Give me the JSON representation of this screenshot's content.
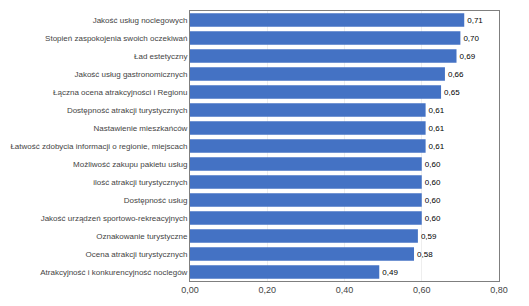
{
  "chart_data": {
    "type": "bar",
    "orientation": "horizontal",
    "categories": [
      "Atrakcyjność i konkurencyjność noclegów",
      "Ocena atrakcji turystycznych",
      "Oznakowanie turystyczne",
      "Jakość urządzeń sportowo-rekreacyjnych",
      "Dostępność usług",
      "ilość atrakcji turystycznych",
      "Możliwość zakupu pakietu usług",
      "Łatwość zdobycia informacji o regionie, miejscach",
      "Nastawienie mieszkańców",
      "Dostępność atrakcji turystycznych",
      "Łączna ocena atrakcyjności i Regionu",
      "Jakość usług gastronomicznych",
      "Ład estetyczny",
      "Stopień zaspokojenia swoich oczekiwań",
      "Jakość usług noclegowych"
    ],
    "values": [
      0.49,
      0.58,
      0.59,
      0.6,
      0.6,
      0.6,
      0.6,
      0.61,
      0.61,
      0.61,
      0.65,
      0.66,
      0.69,
      0.7,
      0.71
    ],
    "value_labels": [
      "0,49",
      "0,58",
      "0,59",
      "0,60",
      "0,60",
      "0,60",
      "0,60",
      "0,61",
      "0,61",
      "0,61",
      "0,65",
      "0,66",
      "0,69",
      "0,70",
      "0,71"
    ],
    "data_labels": true,
    "color": "#4472C4",
    "xlim": [
      0,
      0.8
    ],
    "xticks": [
      {
        "value": 0.0,
        "label": "0,00"
      },
      {
        "value": 0.2,
        "label": "0,20"
      },
      {
        "value": 0.4,
        "label": "0,40"
      },
      {
        "value": 0.6,
        "label": "0,60"
      },
      {
        "value": 0.8,
        "label": "0,80"
      }
    ],
    "grid": true
  }
}
